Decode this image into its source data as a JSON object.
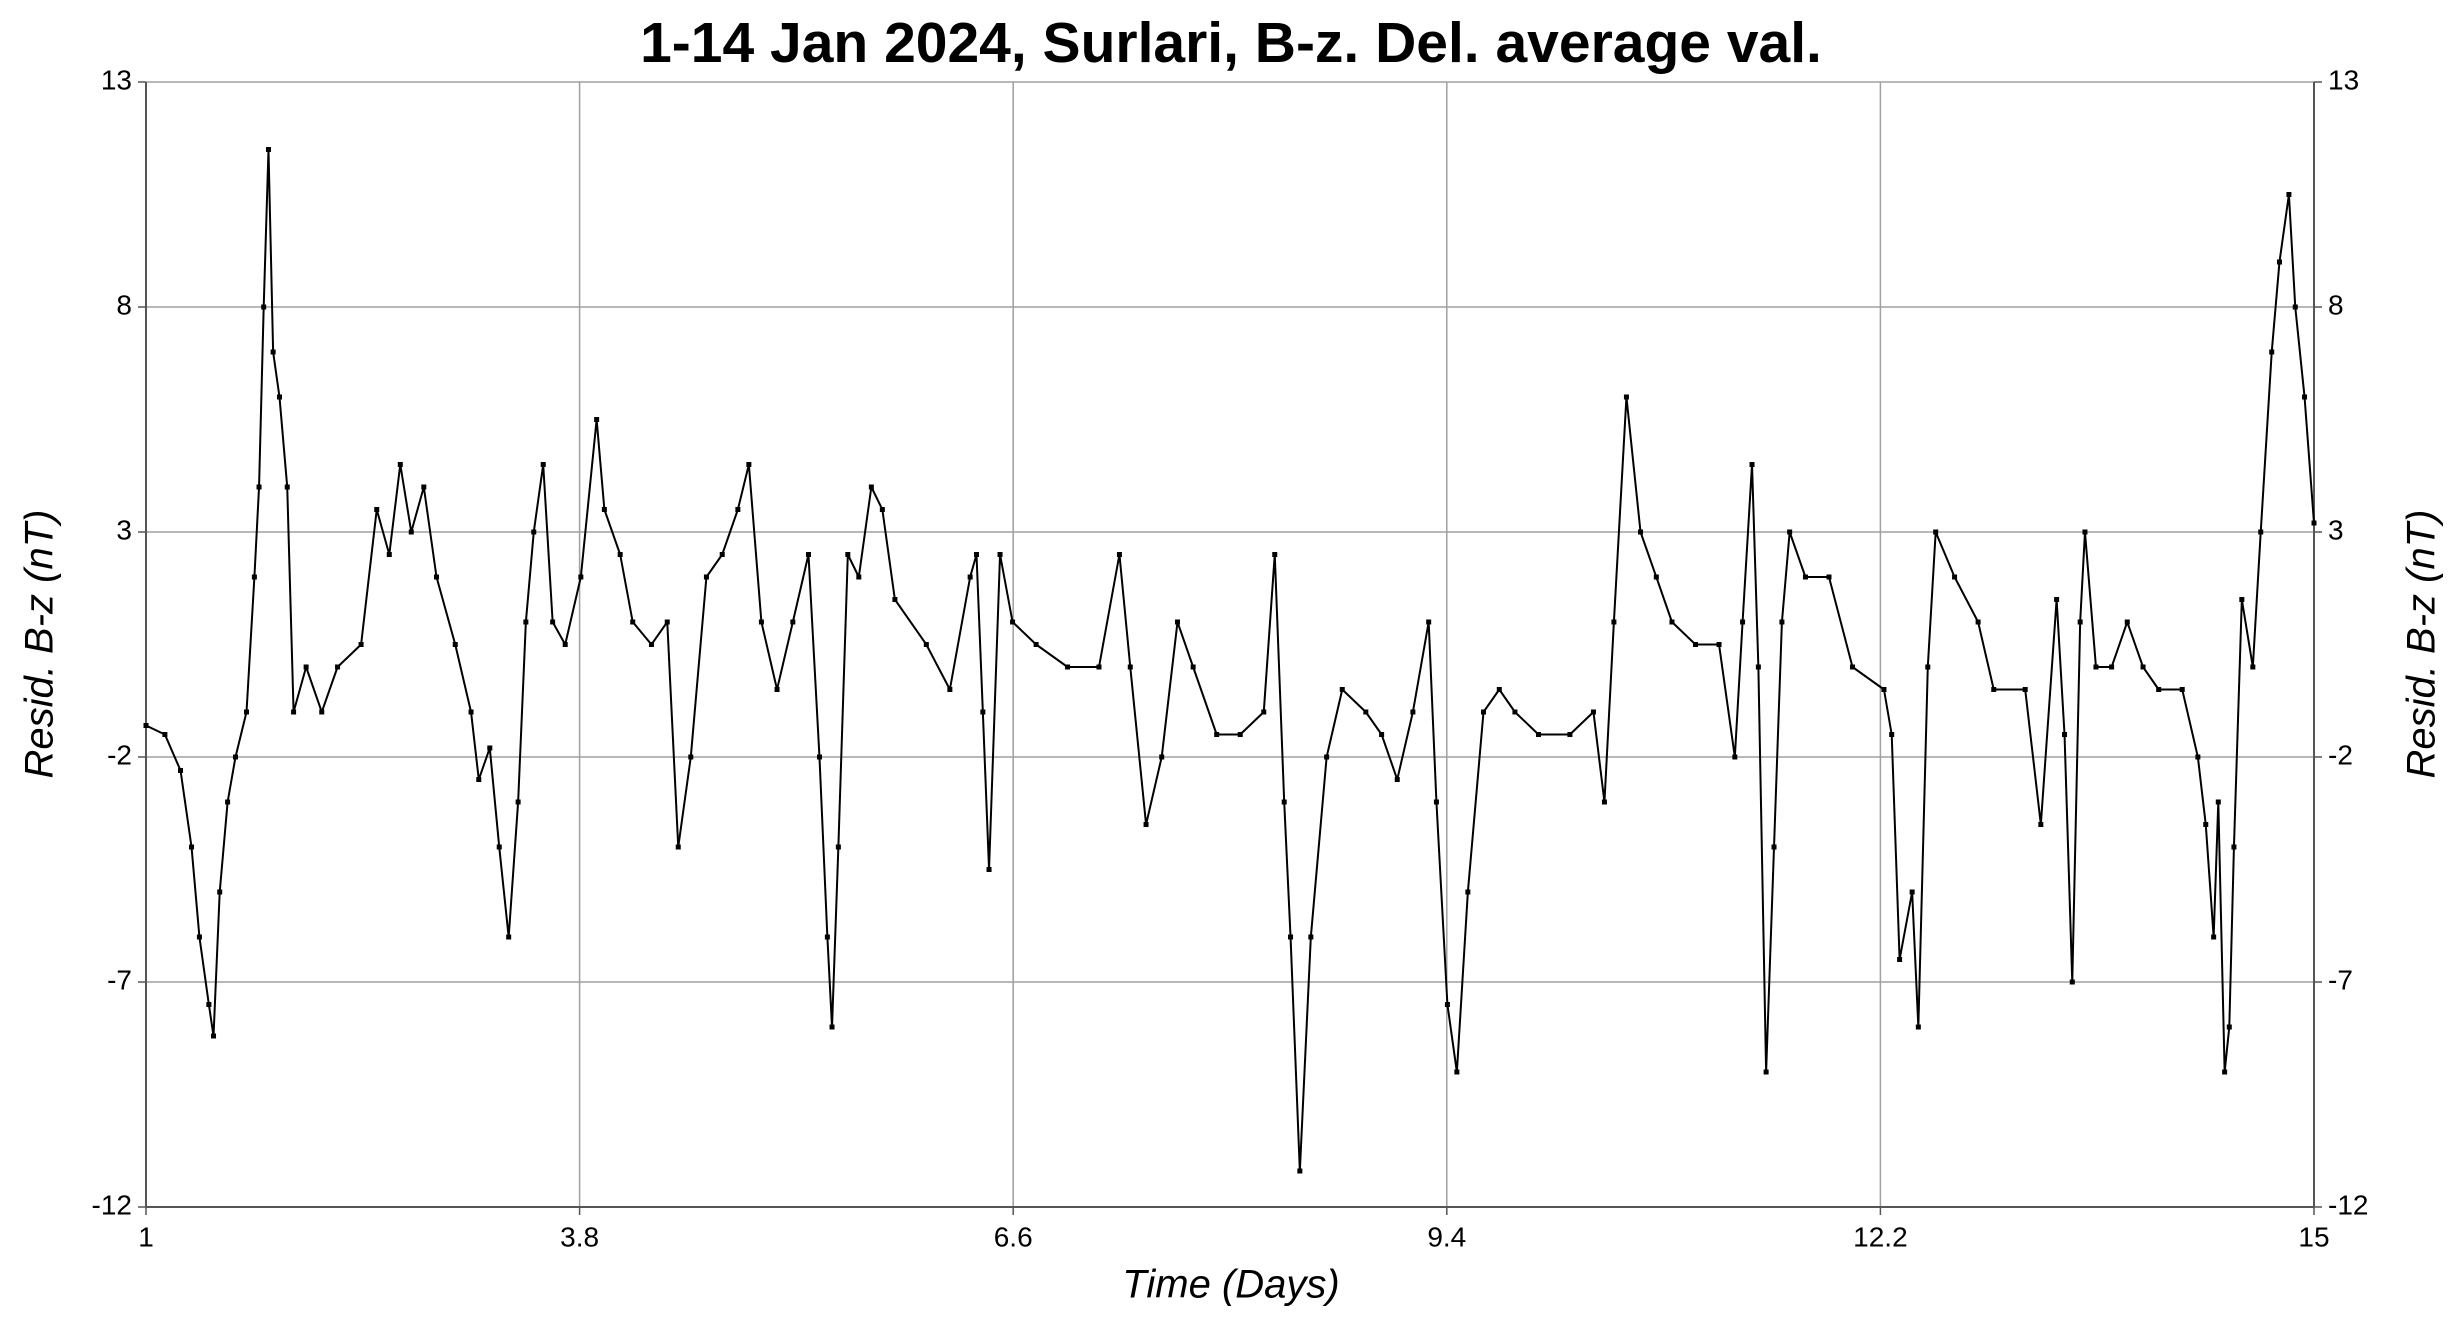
{
  "chart_data": {
    "type": "line",
    "title": "1-14 Jan 2024, Surlari, B-z. Del. average val.",
    "x_label": "Time (Days)",
    "y_label": "Resid. B-z (nT)",
    "y2_label": "Resid. B-z (nT)",
    "color": "#000000",
    "grid": true,
    "xlim": [
      1,
      15
    ],
    "xticks": [
      1,
      3.8,
      6.6,
      9.4,
      12.2,
      15
    ],
    "ylim": [
      -12,
      13
    ],
    "yticks": [
      -12,
      -7,
      -2,
      3,
      8,
      13
    ],
    "y2lim": [
      -12,
      13
    ],
    "y2ticks": [
      -12,
      -7,
      -2,
      3,
      8,
      13
    ],
    "x": [
      1.0,
      1.122,
      1.223,
      1.294,
      1.345,
      1.406,
      1.436,
      1.476,
      1.527,
      1.578,
      1.649,
      1.7,
      1.73,
      1.76,
      1.791,
      1.821,
      1.862,
      1.912,
      1.953,
      2.034,
      2.135,
      2.237,
      2.389,
      2.49,
      2.571,
      2.642,
      2.713,
      2.794,
      2.876,
      2.997,
      3.099,
      3.149,
      3.22,
      3.281,
      3.342,
      3.403,
      3.453,
      3.504,
      3.565,
      3.626,
      3.707,
      3.808,
      3.91,
      3.96,
      4.062,
      4.143,
      4.264,
      4.366,
      4.437,
      4.518,
      4.619,
      4.721,
      4.822,
      4.893,
      4.974,
      5.075,
      5.177,
      5.278,
      5.349,
      5.4,
      5.43,
      5.471,
      5.532,
      5.603,
      5.684,
      5.755,
      5.836,
      6.039,
      6.191,
      6.322,
      6.363,
      6.404,
      6.444,
      6.515,
      6.596,
      6.748,
      6.951,
      7.154,
      7.286,
      7.356,
      7.458,
      7.559,
      7.661,
      7.762,
      7.914,
      8.066,
      8.218,
      8.289,
      8.35,
      8.391,
      8.451,
      8.522,
      8.624,
      8.725,
      8.877,
      8.979,
      9.08,
      9.181,
      9.283,
      9.333,
      9.404,
      9.465,
      9.536,
      9.637,
      9.739,
      9.84,
      9.992,
      10.195,
      10.347,
      10.418,
      10.479,
      10.56,
      10.651,
      10.753,
      10.854,
      11.006,
      11.158,
      11.26,
      11.31,
      11.371,
      11.412,
      11.462,
      11.513,
      11.564,
      11.614,
      11.716,
      11.868,
      12.02,
      12.223,
      12.273,
      12.324,
      12.405,
      12.445,
      12.506,
      12.557,
      12.679,
      12.831,
      12.932,
      13.135,
      13.236,
      13.338,
      13.389,
      13.439,
      13.49,
      13.521,
      13.592,
      13.693,
      13.794,
      13.896,
      13.997,
      14.149,
      14.25,
      14.301,
      14.352,
      14.382,
      14.423,
      14.453,
      14.483,
      14.534,
      14.605,
      14.656,
      14.727,
      14.777,
      14.838,
      14.879,
      14.939,
      15.0
    ],
    "values": [
      -1.3,
      -1.5,
      -2.3,
      -4,
      -6,
      -7.5,
      -8.2,
      -5,
      -3,
      -2,
      -1,
      2,
      4,
      8,
      11.5,
      7,
      6,
      4,
      -1,
      0,
      -1,
      0,
      0.5,
      3.5,
      2.5,
      4.5,
      3,
      4,
      2,
      0.5,
      -1,
      -2.5,
      -1.8,
      -4,
      -6,
      -3,
      1,
      3,
      4.5,
      1,
      0.5,
      2,
      5.5,
      3.5,
      2.5,
      1,
      0.5,
      1,
      -4,
      -2,
      2,
      2.5,
      3.5,
      4.5,
      1,
      -0.5,
      1,
      2.5,
      -2,
      -6,
      -8,
      -4,
      2.5,
      2,
      4,
      3.5,
      1.5,
      0.5,
      -0.5,
      2,
      2.5,
      -1,
      -4.5,
      2.5,
      1,
      0.5,
      0,
      0,
      2.5,
      0,
      -3.5,
      -2,
      1,
      0,
      -1.5,
      -1.5,
      -1,
      2.5,
      -3,
      -6,
      -11.2,
      -6,
      -2,
      -0.5,
      -1,
      -1.5,
      -2.5,
      -1,
      1,
      -3,
      -7.5,
      -9,
      -5,
      -1,
      -0.5,
      -1,
      -1.5,
      -1.5,
      -1,
      -3,
      1,
      6,
      3,
      2,
      1,
      0.5,
      0.5,
      -2,
      1,
      4.5,
      0,
      -9,
      -4,
      1,
      3,
      2,
      2,
      0,
      -0.5,
      -1.5,
      -6.5,
      -5,
      -8,
      0,
      3,
      2,
      1,
      -0.5,
      -0.5,
      -3.5,
      1.5,
      -1.5,
      -7,
      1,
      3,
      0,
      0,
      1,
      0,
      -0.5,
      -0.5,
      -2,
      -3.5,
      -6,
      -3,
      -9,
      -8,
      -4,
      1.5,
      0,
      3,
      7,
      9,
      10.5,
      8,
      6,
      3.2
    ]
  }
}
